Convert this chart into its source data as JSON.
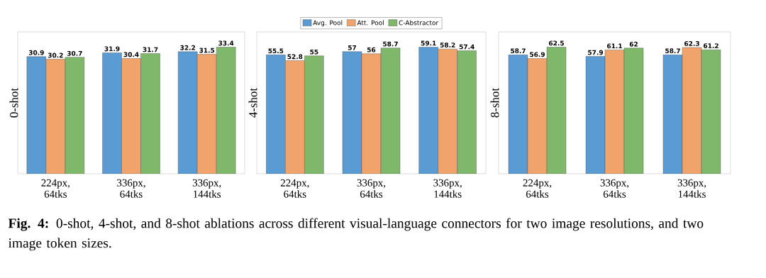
{
  "chart_data": [
    {
      "type": "bar",
      "ylabel": "0-shot",
      "categories": [
        "224px, 64tks",
        "336px, 64tks",
        "336px, 144tks"
      ],
      "data_labels": true,
      "tick_labels": "x",
      "series": [
        {
          "color": "#5a9bd4",
          "values": [
            30.9,
            31.9,
            32.2
          ]
        },
        {
          "color": "#f0a46c",
          "values": [
            30.2,
            30.4,
            31.5
          ]
        },
        {
          "color": "#7fb86b",
          "values": [
            30.7,
            31.7,
            33.4
          ]
        }
      ],
      "annotations": [
        "**Fig. 4:** 0-shot, 4-shot, and 8-shot ablations across different visual-language connectors for two image resolutions, and two image token sizes."
      ]
    },
    {
      "type": "bar",
      "ylabel": "4-shot",
      "categories": [
        "224px, 64tks",
        "336px, 64tks",
        "336px, 144tks"
      ],
      "data_labels": true,
      "tick_labels": "x",
      "legend": "top",
      "series": [
        {
          "name": "Avg. Pool",
          "color": "#5a9bd4",
          "values": [
            55.5,
            57,
            59.1
          ]
        },
        {
          "name": "Att. Pool",
          "color": "#f0a46c",
          "values": [
            52.8,
            56,
            58.2
          ]
        },
        {
          "name": "C-Abstractor",
          "color": "#7fb86b",
          "values": [
            55,
            58.7,
            57.4
          ]
        }
      ]
    },
    {
      "type": "bar",
      "ylabel": "8-shot",
      "categories": [
        "224px, 64tks",
        "336px, 64tks",
        "336px, 144tks"
      ],
      "data_labels": true,
      "tick_labels": "x",
      "series": [
        {
          "color": "#5a9bd4",
          "values": [
            58.7,
            57.9,
            58.7
          ]
        },
        {
          "color": "#f0a46c",
          "values": [
            56.9,
            61.1,
            62.3
          ]
        },
        {
          "color": "#7fb86b",
          "values": [
            62.5,
            62,
            61.2
          ]
        }
      ]
    }
  ]
}
